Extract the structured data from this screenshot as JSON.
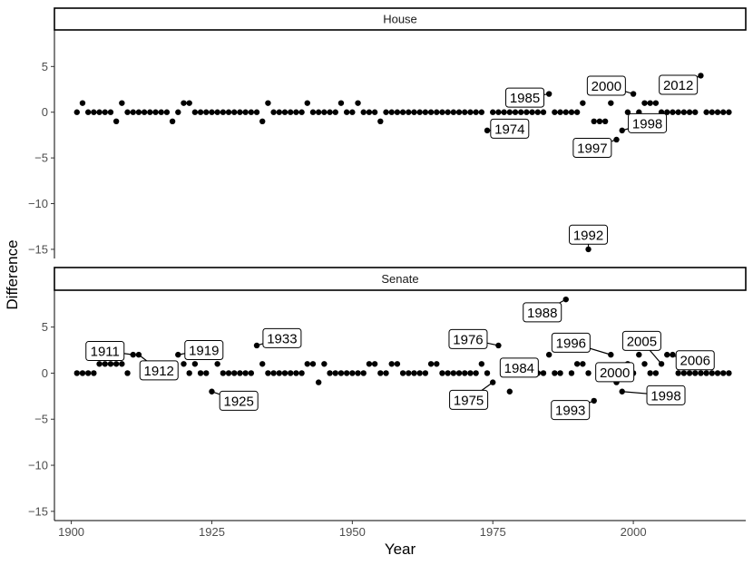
{
  "chart_data": {
    "type": "scatter",
    "title": "",
    "xlabel": "Year",
    "ylabel": "Difference",
    "xlim": [
      1897,
      2020
    ],
    "ylim": [
      -16,
      9
    ],
    "x_ticks": [
      1900,
      1925,
      1950,
      1975,
      2000
    ],
    "y_ticks": [
      5,
      0,
      -5,
      -10,
      -15
    ],
    "y_tick_labels": [
      "5",
      "0",
      "−5",
      "−10",
      "−15"
    ],
    "grid": false,
    "legend": "none",
    "point_color": "#000000",
    "panels": [
      {
        "name": "House",
        "points": [
          [
            1901,
            0
          ],
          [
            1902,
            1
          ],
          [
            1903,
            0
          ],
          [
            1904,
            0
          ],
          [
            1905,
            0
          ],
          [
            1906,
            0
          ],
          [
            1907,
            0
          ],
          [
            1908,
            -1
          ],
          [
            1909,
            1
          ],
          [
            1910,
            0
          ],
          [
            1911,
            0
          ],
          [
            1912,
            0
          ],
          [
            1913,
            0
          ],
          [
            1914,
            0
          ],
          [
            1915,
            0
          ],
          [
            1916,
            0
          ],
          [
            1917,
            0
          ],
          [
            1918,
            -1
          ],
          [
            1919,
            0
          ],
          [
            1920,
            1
          ],
          [
            1921,
            1
          ],
          [
            1922,
            0
          ],
          [
            1923,
            0
          ],
          [
            1924,
            0
          ],
          [
            1925,
            0
          ],
          [
            1926,
            0
          ],
          [
            1927,
            0
          ],
          [
            1928,
            0
          ],
          [
            1929,
            0
          ],
          [
            1930,
            0
          ],
          [
            1931,
            0
          ],
          [
            1932,
            0
          ],
          [
            1933,
            0
          ],
          [
            1934,
            -1
          ],
          [
            1935,
            1
          ],
          [
            1936,
            0
          ],
          [
            1937,
            0
          ],
          [
            1938,
            0
          ],
          [
            1939,
            0
          ],
          [
            1940,
            0
          ],
          [
            1941,
            0
          ],
          [
            1942,
            1
          ],
          [
            1943,
            0
          ],
          [
            1944,
            0
          ],
          [
            1945,
            0
          ],
          [
            1946,
            0
          ],
          [
            1947,
            0
          ],
          [
            1948,
            1
          ],
          [
            1949,
            0
          ],
          [
            1950,
            0
          ],
          [
            1951,
            1
          ],
          [
            1952,
            0
          ],
          [
            1953,
            0
          ],
          [
            1954,
            0
          ],
          [
            1955,
            -1
          ],
          [
            1956,
            0
          ],
          [
            1957,
            0
          ],
          [
            1958,
            0
          ],
          [
            1959,
            0
          ],
          [
            1960,
            0
          ],
          [
            1961,
            0
          ],
          [
            1962,
            0
          ],
          [
            1963,
            0
          ],
          [
            1964,
            0
          ],
          [
            1965,
            0
          ],
          [
            1966,
            0
          ],
          [
            1967,
            0
          ],
          [
            1968,
            0
          ],
          [
            1969,
            0
          ],
          [
            1970,
            0
          ],
          [
            1971,
            0
          ],
          [
            1972,
            0
          ],
          [
            1973,
            0
          ],
          [
            1974,
            -2
          ],
          [
            1975,
            0
          ],
          [
            1976,
            0
          ],
          [
            1977,
            0
          ],
          [
            1978,
            0
          ],
          [
            1979,
            0
          ],
          [
            1980,
            0
          ],
          [
            1981,
            0
          ],
          [
            1982,
            0
          ],
          [
            1983,
            0
          ],
          [
            1984,
            0
          ],
          [
            1985,
            2
          ],
          [
            1986,
            0
          ],
          [
            1987,
            0
          ],
          [
            1988,
            0
          ],
          [
            1989,
            0
          ],
          [
            1990,
            0
          ],
          [
            1991,
            1
          ],
          [
            1992,
            -15
          ],
          [
            1993,
            -1
          ],
          [
            1994,
            -1
          ],
          [
            1995,
            -1
          ],
          [
            1996,
            1
          ],
          [
            1997,
            -3
          ],
          [
            1998,
            -2
          ],
          [
            1999,
            0
          ],
          [
            2000,
            2
          ],
          [
            2001,
            0
          ],
          [
            2002,
            1
          ],
          [
            2003,
            1
          ],
          [
            2004,
            1
          ],
          [
            2005,
            0
          ],
          [
            2006,
            0
          ],
          [
            2007,
            0
          ],
          [
            2008,
            0
          ],
          [
            2009,
            0
          ],
          [
            2010,
            0
          ],
          [
            2011,
            0
          ],
          [
            2012,
            4
          ],
          [
            2013,
            0
          ],
          [
            2014,
            0
          ],
          [
            2015,
            0
          ],
          [
            2016,
            0
          ],
          [
            2017,
            0
          ]
        ],
        "labels": [
          {
            "text": "1974",
            "x": 1974,
            "y": -2,
            "lx": 1978.0,
            "ly": -1.8
          },
          {
            "text": "1985",
            "x": 1985,
            "y": 2,
            "lx": 1980.7,
            "ly": 1.6
          },
          {
            "text": "1992",
            "x": 1992,
            "y": -15,
            "lx": 1992.0,
            "ly": -13.4
          },
          {
            "text": "1997",
            "x": 1997,
            "y": -3,
            "lx": 1992.7,
            "ly": -3.9
          },
          {
            "text": "1998",
            "x": 1998,
            "y": -2,
            "lx": 2002.5,
            "ly": -1.2
          },
          {
            "text": "2000",
            "x": 2000,
            "y": 2,
            "lx": 1995.2,
            "ly": 2.9
          },
          {
            "text": "2012",
            "x": 2012,
            "y": 4,
            "lx": 2008.0,
            "ly": 3.0
          }
        ]
      },
      {
        "name": "Senate",
        "points": [
          [
            1901,
            0
          ],
          [
            1902,
            0
          ],
          [
            1903,
            0
          ],
          [
            1904,
            0
          ],
          [
            1905,
            1
          ],
          [
            1906,
            1
          ],
          [
            1907,
            1
          ],
          [
            1908,
            1
          ],
          [
            1909,
            1
          ],
          [
            1910,
            0
          ],
          [
            1911,
            2
          ],
          [
            1912,
            2
          ],
          [
            1913,
            0
          ],
          [
            1914,
            0
          ],
          [
            1915,
            0
          ],
          [
            1916,
            0
          ],
          [
            1917,
            0
          ],
          [
            1918,
            0
          ],
          [
            1919,
            2
          ],
          [
            1920,
            1
          ],
          [
            1921,
            0
          ],
          [
            1922,
            1
          ],
          [
            1923,
            0
          ],
          [
            1924,
            0
          ],
          [
            1925,
            -2
          ],
          [
            1926,
            1
          ],
          [
            1927,
            0
          ],
          [
            1928,
            0
          ],
          [
            1929,
            0
          ],
          [
            1930,
            0
          ],
          [
            1931,
            0
          ],
          [
            1932,
            0
          ],
          [
            1933,
            3
          ],
          [
            1934,
            1
          ],
          [
            1935,
            0
          ],
          [
            1936,
            0
          ],
          [
            1937,
            0
          ],
          [
            1938,
            0
          ],
          [
            1939,
            0
          ],
          [
            1940,
            0
          ],
          [
            1941,
            0
          ],
          [
            1942,
            1
          ],
          [
            1943,
            1
          ],
          [
            1944,
            -1
          ],
          [
            1945,
            1
          ],
          [
            1946,
            0
          ],
          [
            1947,
            0
          ],
          [
            1948,
            0
          ],
          [
            1949,
            0
          ],
          [
            1950,
            0
          ],
          [
            1951,
            0
          ],
          [
            1952,
            0
          ],
          [
            1953,
            1
          ],
          [
            1954,
            1
          ],
          [
            1955,
            0
          ],
          [
            1956,
            0
          ],
          [
            1957,
            1
          ],
          [
            1958,
            1
          ],
          [
            1959,
            0
          ],
          [
            1960,
            0
          ],
          [
            1961,
            0
          ],
          [
            1962,
            0
          ],
          [
            1963,
            0
          ],
          [
            1964,
            1
          ],
          [
            1965,
            1
          ],
          [
            1966,
            0
          ],
          [
            1967,
            0
          ],
          [
            1968,
            0
          ],
          [
            1969,
            0
          ],
          [
            1970,
            0
          ],
          [
            1971,
            0
          ],
          [
            1972,
            0
          ],
          [
            1973,
            1
          ],
          [
            1974,
            0
          ],
          [
            1975,
            -1
          ],
          [
            1976,
            3
          ],
          [
            1977,
            0
          ],
          [
            1978,
            -2
          ],
          [
            1979,
            0
          ],
          [
            1980,
            0
          ],
          [
            1981,
            0
          ],
          [
            1982,
            0
          ],
          [
            1983,
            0
          ],
          [
            1984,
            0
          ],
          [
            1985,
            2
          ],
          [
            1986,
            0
          ],
          [
            1987,
            0
          ],
          [
            1988,
            8
          ],
          [
            1989,
            0
          ],
          [
            1990,
            1
          ],
          [
            1991,
            1
          ],
          [
            1992,
            0
          ],
          [
            1993,
            -3
          ],
          [
            1994,
            0
          ],
          [
            1995,
            0
          ],
          [
            1996,
            2
          ],
          [
            1997,
            -1
          ],
          [
            1998,
            -2
          ],
          [
            1999,
            1
          ],
          [
            2000,
            0
          ],
          [
            2001,
            2
          ],
          [
            2002,
            1
          ],
          [
            2003,
            0
          ],
          [
            2004,
            0
          ],
          [
            2005,
            1
          ],
          [
            2006,
            2
          ],
          [
            2007,
            2
          ],
          [
            2008,
            0
          ],
          [
            2009,
            0
          ],
          [
            2010,
            0
          ],
          [
            2011,
            0
          ],
          [
            2012,
            0
          ],
          [
            2013,
            0
          ],
          [
            2014,
            0
          ],
          [
            2015,
            0
          ],
          [
            2016,
            0
          ],
          [
            2017,
            0
          ]
        ],
        "labels": [
          {
            "text": "1911",
            "x": 1911,
            "y": 2,
            "lx": 1906.0,
            "ly": 2.4
          },
          {
            "text": "1912",
            "x": 1912,
            "y": 2,
            "lx": 1915.6,
            "ly": 0.3
          },
          {
            "text": "1919",
            "x": 1919,
            "y": 2,
            "lx": 1923.6,
            "ly": 2.5
          },
          {
            "text": "1925",
            "x": 1925,
            "y": -2,
            "lx": 1929.8,
            "ly": -3.0
          },
          {
            "text": "1933",
            "x": 1933,
            "y": 3,
            "lx": 1937.5,
            "ly": 3.8
          },
          {
            "text": "1975",
            "x": 1975,
            "y": -1,
            "lx": 1970.7,
            "ly": -2.9
          },
          {
            "text": "1976",
            "x": 1976,
            "y": 3,
            "lx": 1970.6,
            "ly": 3.7
          },
          {
            "text": "1984",
            "x": 1984,
            "y": 0,
            "lx": 1979.7,
            "ly": 0.6
          },
          {
            "text": "1988",
            "x": 1988,
            "y": 8,
            "lx": 1983.8,
            "ly": 6.6
          },
          {
            "text": "1993",
            "x": 1993,
            "y": -3,
            "lx": 1988.8,
            "ly": -4.0
          },
          {
            "text": "1996",
            "x": 1996,
            "y": 2,
            "lx": 1988.9,
            "ly": 3.3
          },
          {
            "text": "1998",
            "x": 1998,
            "y": -2,
            "lx": 2005.8,
            "ly": -2.4
          },
          {
            "text": "2000",
            "x": 2000,
            "y": 0,
            "lx": 1996.7,
            "ly": 0.1
          },
          {
            "text": "2005",
            "x": 2005,
            "y": 1,
            "lx": 2001.5,
            "ly": 3.5
          },
          {
            "text": "2006",
            "x": 2006,
            "y": 2,
            "lx": 2011.0,
            "ly": 1.4
          }
        ]
      }
    ]
  }
}
